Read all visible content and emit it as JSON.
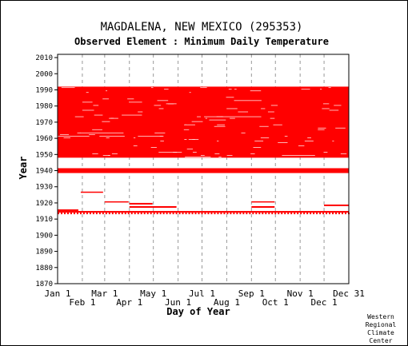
{
  "header": {
    "title": "MAGDALENA, NEW MEXICO   (295353)",
    "subtitle": "Observed Element : Minimum Daily Temperature"
  },
  "credit": [
    "Western",
    "Regional",
    "Climate",
    "Center"
  ],
  "chart_data": {
    "type": "scatter",
    "title": "MAGDALENA, NEW MEXICO   (295353)",
    "subtitle": "Observed Element : Minimum Daily Temperature",
    "xlabel": "Day of Year",
    "ylabel": "Year",
    "xlim": [
      1,
      366
    ],
    "ylim": [
      1870,
      2012
    ],
    "y_ticks": [
      1870,
      1880,
      1890,
      1900,
      1910,
      1920,
      1930,
      1940,
      1950,
      1960,
      1970,
      1980,
      1990,
      2000,
      2010
    ],
    "x_ticks_upper": [
      {
        "label": "Jan 1",
        "day": 1
      },
      {
        "label": "Mar 1",
        "day": 60
      },
      {
        "label": "May 1",
        "day": 121
      },
      {
        "label": "Jul 1",
        "day": 182
      },
      {
        "label": "Sep 1",
        "day": 244
      },
      {
        "label": "Nov 1",
        "day": 305
      },
      {
        "label": "Dec 31",
        "day": 366
      }
    ],
    "x_ticks_lower": [
      {
        "label": "Feb 1",
        "day": 32
      },
      {
        "label": "Apr 1",
        "day": 91
      },
      {
        "label": "Jun 1",
        "day": 152
      },
      {
        "label": "Aug 1",
        "day": 213
      },
      {
        "label": "Oct 1",
        "day": 274
      },
      {
        "label": "Dec 1",
        "day": 335
      }
    ],
    "grid": {
      "vertical_dashed": true,
      "horizontal": false
    },
    "point_color": "#ff0000",
    "data_coverage": [
      {
        "start_year": 1948,
        "end_year": 1992,
        "start_day": 1,
        "end_day": 366,
        "density": "dense"
      },
      {
        "start_year": 1938.5,
        "end_year": 1941.5,
        "start_day": 1,
        "end_day": 366,
        "density": "solid"
      },
      {
        "start_year": 1915,
        "end_year": 1916,
        "start_day": 1,
        "end_day": 27,
        "density": "solid"
      },
      {
        "start_year": 1914,
        "end_year": 1915,
        "start_day": 1,
        "end_day": 366,
        "density": "solid"
      },
      {
        "start_year": 1926.5,
        "end_year": 1927,
        "start_day": 30,
        "end_day": 58,
        "density": "solid"
      },
      {
        "start_year": 1920.5,
        "end_year": 1921,
        "start_day": 60,
        "end_day": 90,
        "density": "solid"
      },
      {
        "start_year": 1919,
        "end_year": 1920,
        "start_day": 91,
        "end_day": 120,
        "density": "solid"
      },
      {
        "start_year": 1917,
        "end_year": 1918,
        "start_day": 91,
        "end_day": 150,
        "density": "solid"
      },
      {
        "start_year": 1920.5,
        "end_year": 1921,
        "start_day": 244,
        "end_day": 273,
        "density": "solid"
      },
      {
        "start_year": 1917,
        "end_year": 1918,
        "start_day": 244,
        "end_day": 273,
        "density": "solid"
      },
      {
        "start_year": 1918,
        "end_year": 1919,
        "start_day": 335,
        "end_day": 366,
        "density": "solid"
      },
      {
        "start_year": 1913,
        "end_year": 1914,
        "start_day": 1,
        "end_day": 366,
        "density": "sparse"
      }
    ]
  }
}
